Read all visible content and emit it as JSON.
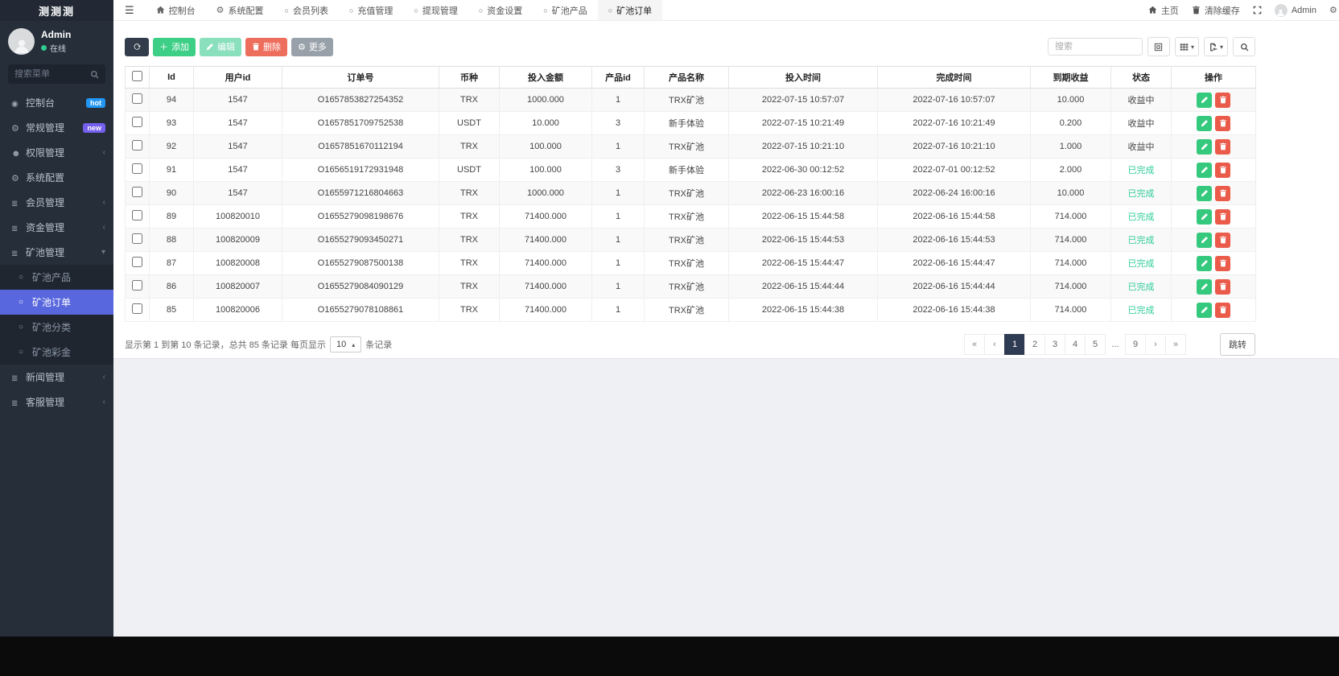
{
  "window": {
    "logo": "测测测"
  },
  "topnav": {
    "tabs": [
      {
        "label": "控制台",
        "icon": "home-icon",
        "active": false
      },
      {
        "label": "系统配置",
        "icon": "gear-icon",
        "active": false
      },
      {
        "label": "会员列表",
        "icon": "circle-icon",
        "active": false
      },
      {
        "label": "充值管理",
        "icon": "circle-icon",
        "active": false
      },
      {
        "label": "提现管理",
        "icon": "circle-icon",
        "active": false
      },
      {
        "label": "资金设置",
        "icon": "circle-icon",
        "active": false
      },
      {
        "label": "矿池产品",
        "icon": "circle-icon",
        "active": false
      },
      {
        "label": "矿池订单",
        "icon": "circle-icon",
        "active": true
      }
    ],
    "right": {
      "home": "主页",
      "clear_cache": "清除缓存",
      "user": "Admin"
    }
  },
  "sidebar": {
    "user": {
      "name": "Admin",
      "status": "在线"
    },
    "search_placeholder": "搜索菜单",
    "menu": [
      {
        "label": "控制台",
        "icon": "dashboard-icon",
        "badge": "hot",
        "badge_color": "#2196f3"
      },
      {
        "label": "常规管理",
        "icon": "gears-icon",
        "badge": "new",
        "badge_color": "#7460ee"
      },
      {
        "label": "权限管理",
        "icon": "users-icon",
        "chevron": "left"
      },
      {
        "label": "系统配置",
        "icon": "gear-icon"
      },
      {
        "label": "会员管理",
        "icon": "list-icon",
        "chevron": "left"
      },
      {
        "label": "资金管理",
        "icon": "list-icon",
        "chevron": "left"
      },
      {
        "label": "矿池管理",
        "icon": "list-icon",
        "chevron": "down",
        "open": true,
        "children": [
          {
            "label": "矿池产品",
            "active": false
          },
          {
            "label": "矿池订单",
            "active": true
          },
          {
            "label": "矿池分类",
            "active": false
          },
          {
            "label": "矿池彩金",
            "active": false
          }
        ]
      },
      {
        "label": "新闻管理",
        "icon": "list-icon",
        "chevron": "left"
      },
      {
        "label": "客服管理",
        "icon": "list-icon",
        "chevron": "left"
      }
    ]
  },
  "toolbar": {
    "add_label": "添加",
    "edit_label": "编辑",
    "delete_label": "删除",
    "more_label": "更多",
    "search_placeholder": "搜索"
  },
  "table": {
    "headers": [
      "Id",
      "用户id",
      "订单号",
      "币种",
      "投入金额",
      "产品id",
      "产品名称",
      "投入时间",
      "完成时间",
      "到期收益",
      "状态",
      "操作"
    ],
    "status_colors": {
      "收益中": "#444444",
      "已完成": "#2ecc9a"
    },
    "rows": [
      {
        "id": "94",
        "uid": "1547",
        "order": "O1657853827254352",
        "coin": "TRX",
        "amount": "1000.000",
        "pid": "1",
        "pname": "TRX矿池",
        "start": "2022-07-15 10:57:07",
        "end": "2022-07-16 10:57:07",
        "income": "10.000",
        "status": "收益中"
      },
      {
        "id": "93",
        "uid": "1547",
        "order": "O1657851709752538",
        "coin": "USDT",
        "amount": "10.000",
        "pid": "3",
        "pname": "新手体验",
        "start": "2022-07-15 10:21:49",
        "end": "2022-07-16 10:21:49",
        "income": "0.200",
        "status": "收益中"
      },
      {
        "id": "92",
        "uid": "1547",
        "order": "O1657851670112194",
        "coin": "TRX",
        "amount": "100.000",
        "pid": "1",
        "pname": "TRX矿池",
        "start": "2022-07-15 10:21:10",
        "end": "2022-07-16 10:21:10",
        "income": "1.000",
        "status": "收益中"
      },
      {
        "id": "91",
        "uid": "1547",
        "order": "O1656519172931948",
        "coin": "USDT",
        "amount": "100.000",
        "pid": "3",
        "pname": "新手体验",
        "start": "2022-06-30 00:12:52",
        "end": "2022-07-01 00:12:52",
        "income": "2.000",
        "status": "已完成"
      },
      {
        "id": "90",
        "uid": "1547",
        "order": "O1655971216804663",
        "coin": "TRX",
        "amount": "1000.000",
        "pid": "1",
        "pname": "TRX矿池",
        "start": "2022-06-23 16:00:16",
        "end": "2022-06-24 16:00:16",
        "income": "10.000",
        "status": "已完成"
      },
      {
        "id": "89",
        "uid": "100820010",
        "order": "O1655279098198676",
        "coin": "TRX",
        "amount": "71400.000",
        "pid": "1",
        "pname": "TRX矿池",
        "start": "2022-06-15 15:44:58",
        "end": "2022-06-16 15:44:58",
        "income": "714.000",
        "status": "已完成"
      },
      {
        "id": "88",
        "uid": "100820009",
        "order": "O1655279093450271",
        "coin": "TRX",
        "amount": "71400.000",
        "pid": "1",
        "pname": "TRX矿池",
        "start": "2022-06-15 15:44:53",
        "end": "2022-06-16 15:44:53",
        "income": "714.000",
        "status": "已完成"
      },
      {
        "id": "87",
        "uid": "100820008",
        "order": "O1655279087500138",
        "coin": "TRX",
        "amount": "71400.000",
        "pid": "1",
        "pname": "TRX矿池",
        "start": "2022-06-15 15:44:47",
        "end": "2022-06-16 15:44:47",
        "income": "714.000",
        "status": "已完成"
      },
      {
        "id": "86",
        "uid": "100820007",
        "order": "O1655279084090129",
        "coin": "TRX",
        "amount": "71400.000",
        "pid": "1",
        "pname": "TRX矿池",
        "start": "2022-06-15 15:44:44",
        "end": "2022-06-16 15:44:44",
        "income": "714.000",
        "status": "已完成"
      },
      {
        "id": "85",
        "uid": "100820006",
        "order": "O1655279078108861",
        "coin": "TRX",
        "amount": "71400.000",
        "pid": "1",
        "pname": "TRX矿池",
        "start": "2022-06-15 15:44:38",
        "end": "2022-06-16 15:44:38",
        "income": "714.000",
        "status": "已完成"
      }
    ]
  },
  "footer": {
    "info_prefix": "显示第 1 到第 10 条记录，总共 85 条记录 每页显示",
    "per_page": "10",
    "info_suffix": "条记录",
    "pages": [
      "«",
      "‹",
      "1",
      "2",
      "3",
      "4",
      "5",
      "...",
      "9",
      "›",
      "»"
    ],
    "active_page": "1",
    "jump_label": "跳转"
  }
}
